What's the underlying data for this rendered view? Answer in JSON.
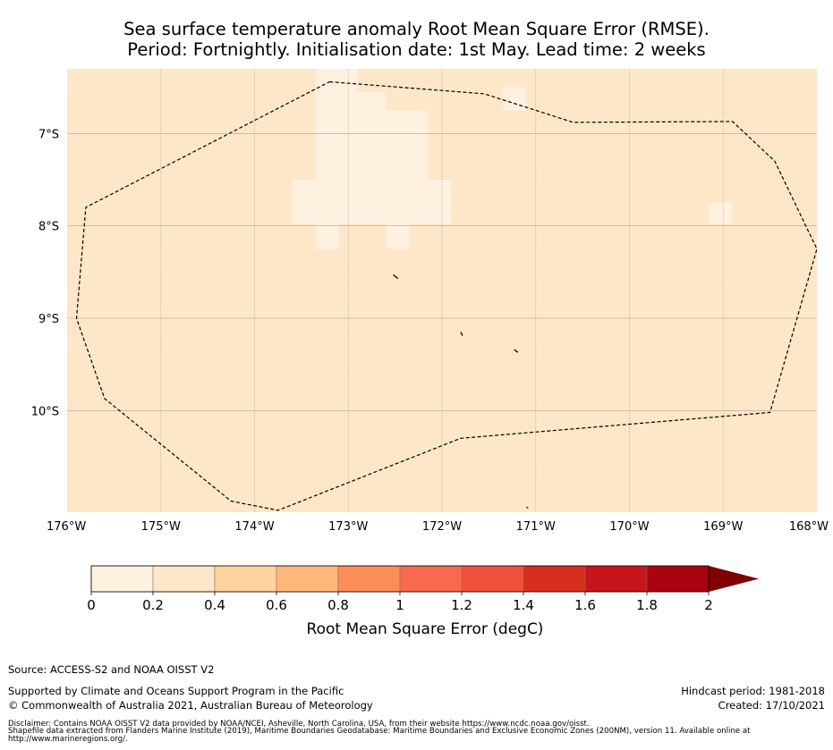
{
  "title": {
    "line1": "Sea surface temperature anomaly Root Mean Square Error (RMSE).",
    "line2": "Period: Fortnightly. Initialisation date: 1st May. Lead time: 2 weeks"
  },
  "map": {
    "lon_range": [
      -176,
      -168
    ],
    "lat_range": [
      -11.1,
      -6.3
    ],
    "lat_ticks": [
      {
        "value": -7,
        "label": "7°S"
      },
      {
        "value": -8,
        "label": "8°S"
      },
      {
        "value": -9,
        "label": "9°S"
      },
      {
        "value": -10,
        "label": "10°S"
      }
    ],
    "lon_ticks": [
      {
        "value": -176,
        "label": "176°W"
      },
      {
        "value": -175,
        "label": "175°W"
      },
      {
        "value": -174,
        "label": "174°W"
      },
      {
        "value": -173,
        "label": "173°W"
      },
      {
        "value": -172,
        "label": "172°W"
      },
      {
        "value": -171,
        "label": "171°W"
      },
      {
        "value": -170,
        "label": "170°W"
      },
      {
        "value": -169,
        "label": "169°W"
      },
      {
        "value": -168,
        "label": "168°W"
      }
    ],
    "background_value_band": "0.2-0.4",
    "low_rmse_cells": [
      {
        "lon": [
          -173.35,
          -172.9
        ],
        "lat": [
          -6.3,
          -6.55
        ]
      },
      {
        "lon": [
          -173.35,
          -172.6
        ],
        "lat": [
          -6.55,
          -6.75
        ]
      },
      {
        "lon": [
          -173.35,
          -172.15
        ],
        "lat": [
          -6.75,
          -7.5
        ]
      },
      {
        "lon": [
          -173.6,
          -171.9
        ],
        "lat": [
          -7.5,
          -7.98
        ]
      },
      {
        "lon": [
          -173.35,
          -173.1
        ],
        "lat": [
          -7.98,
          -8.25
        ]
      },
      {
        "lon": [
          -172.6,
          -172.35
        ],
        "lat": [
          -7.98,
          -8.25
        ]
      },
      {
        "lon": [
          -171.35,
          -171.1
        ],
        "lat": [
          -6.5,
          -6.75
        ]
      },
      {
        "lon": [
          -169.15,
          -168.9
        ],
        "lat": [
          -7.75,
          -7.98
        ]
      }
    ],
    "eez_boundary": [
      [
        -173.2,
        -6.44
      ],
      [
        -171.55,
        -6.57
      ],
      [
        -170.6,
        -6.88
      ],
      [
        -168.9,
        -6.87
      ],
      [
        -168.45,
        -7.3
      ],
      [
        -168.0,
        -8.25
      ],
      [
        -168.5,
        -10.02
      ],
      [
        -171.8,
        -10.3
      ],
      [
        -173.75,
        -11.08
      ],
      [
        -174.25,
        -10.98
      ],
      [
        -175.6,
        -9.87
      ],
      [
        -175.9,
        -9.0
      ],
      [
        -175.8,
        -7.8
      ],
      [
        -173.2,
        -6.44
      ]
    ],
    "islands": [
      [
        [
          -172.52,
          -8.53
        ],
        [
          -172.47,
          -8.57
        ]
      ],
      [
        [
          -171.8,
          -9.15
        ],
        [
          -171.78,
          -9.19
        ]
      ],
      [
        [
          -171.23,
          -9.34
        ],
        [
          -171.19,
          -9.37
        ]
      ],
      [
        [
          -171.1,
          -11.05
        ],
        [
          -171.08,
          -11.05
        ]
      ]
    ]
  },
  "colorbar": {
    "label": "Root Mean Square Error (degC)",
    "ticks": [
      "0",
      "0.2",
      "0.4",
      "0.6",
      "0.8",
      "1",
      "1.2",
      "1.4",
      "1.6",
      "1.8",
      "2"
    ],
    "colors": [
      "#fff1e0",
      "#fee7c8",
      "#fdd39e",
      "#fdb77b",
      "#fc8d59",
      "#f8694e",
      "#f05039",
      "#d62f1f",
      "#c6161c",
      "#ab0210"
    ],
    "extend_color": "#7f0000"
  },
  "footer": {
    "source": "Source: ACCESS-S2 and NOAA OISST V2",
    "supported": "Supported by Climate and Oceans Support Program in the Pacific",
    "copyright": "© Commonwealth of Australia 2021, Australian Bureau of Meteorology",
    "hindcast": "Hindcast period: 1981-2018",
    "created": "Created: 17/10/2021",
    "disclaimer1": "Disclaimer: Contains NOAA OISST V2 data provided by NOAA/NCEI, Asheville, North Carolina, USA, from their website https://www.ncdc.noaa.gov/oisst.",
    "disclaimer2": "Shapefile data extracted from Flanders Marine Institute (2019), Maritime Boundaries Geodatabase: Maritime Boundaries and Exclusive Economic Zones (200NM), version 11. Available online at",
    "disclaimer3": "http://www.marineregions.org/."
  }
}
